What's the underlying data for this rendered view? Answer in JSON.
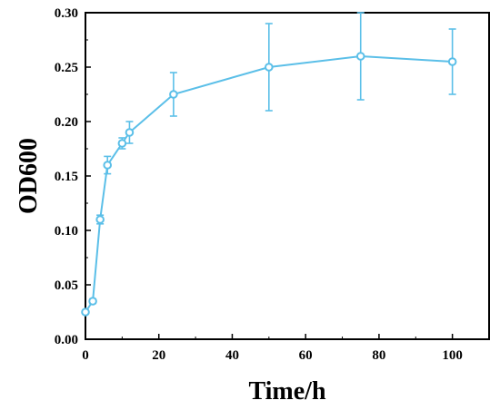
{
  "chart_data": {
    "type": "line",
    "title": "",
    "xlabel": "Time/h",
    "ylabel": "OD600",
    "xlim": [
      0,
      110
    ],
    "ylim": [
      0,
      0.3
    ],
    "x_ticks": [
      0,
      20,
      40,
      60,
      80,
      100
    ],
    "x_tick_labels": [
      "0",
      "20",
      "40",
      "60",
      "80",
      "100"
    ],
    "y_ticks": [
      0,
      0.05,
      0.1,
      0.15,
      0.2,
      0.25,
      0.3
    ],
    "y_tick_labels": [
      "0.00",
      "0.05",
      "0.10",
      "0.15",
      "0.20",
      "0.25",
      "0.30"
    ],
    "grid": false,
    "legend": "none",
    "color": "#5bbfe8",
    "series": [
      {
        "x": [
          0,
          2,
          4,
          6,
          10,
          12,
          24,
          50,
          75,
          100
        ],
        "y": [
          0.025,
          0.035,
          0.11,
          0.16,
          0.18,
          0.19,
          0.225,
          0.25,
          0.26,
          0.255
        ],
        "error": [
          0,
          0.002,
          0.004,
          0.008,
          0.005,
          0.01,
          0.02,
          0.04,
          0.04,
          0.03
        ]
      }
    ]
  }
}
